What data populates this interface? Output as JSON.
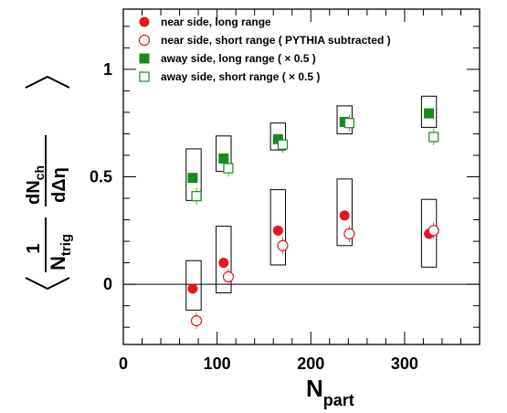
{
  "chart_data": {
    "type": "scatter",
    "xlabel": "N",
    "xlabel_sub": "part",
    "ylabel": {
      "one": "1",
      "trig_main": "N",
      "trig_sub": "trig",
      "dn_main": "dN",
      "dn_sub": "ch",
      "deta": "dΔη"
    },
    "xlim": [
      0,
      380
    ],
    "ylim": [
      -0.28,
      1.28
    ],
    "x_ticks": [
      0,
      100,
      200,
      300
    ],
    "x_tick_labels": [
      "0",
      "100",
      "200",
      "300"
    ],
    "y_ticks": [
      0,
      0.5,
      1
    ],
    "y_tick_labels": [
      "0",
      "0.5",
      "1"
    ],
    "legend_position": "top-left",
    "reference_line_y": 0,
    "series": [
      {
        "name": "near side, long range",
        "marker": "filled-circle",
        "color": "#e8141b",
        "points": [
          {
            "x": 74,
            "y": -0.02
          },
          {
            "x": 107,
            "y": 0.1
          },
          {
            "x": 165,
            "y": 0.25
          },
          {
            "x": 236,
            "y": 0.32
          },
          {
            "x": 326,
            "y": 0.235
          }
        ]
      },
      {
        "name": "near side, short range ( PYTHIA subtracted )",
        "marker": "open-circle",
        "color": "#e8141b",
        "points": [
          {
            "x": 78,
            "y": -0.17
          },
          {
            "x": 112,
            "y": 0.035
          },
          {
            "x": 170,
            "y": 0.18
          },
          {
            "x": 241,
            "y": 0.235
          },
          {
            "x": 331,
            "y": 0.25
          }
        ]
      },
      {
        "name": "away side, long range ( × 0.5 )",
        "marker": "filled-square",
        "color": "#198a1f",
        "points": [
          {
            "x": 74,
            "y": 0.495
          },
          {
            "x": 107,
            "y": 0.585
          },
          {
            "x": 165,
            "y": 0.675
          },
          {
            "x": 236,
            "y": 0.755
          },
          {
            "x": 326,
            "y": 0.795
          }
        ]
      },
      {
        "name": "away side, short range ( × 0.5 )",
        "marker": "open-square",
        "color": "#198a1f",
        "points": [
          {
            "x": 78,
            "y": 0.41
          },
          {
            "x": 112,
            "y": 0.54
          },
          {
            "x": 170,
            "y": 0.65
          },
          {
            "x": 241,
            "y": 0.75
          },
          {
            "x": 331,
            "y": 0.685
          }
        ]
      }
    ],
    "systematic_boxes": [
      {
        "x_center": 75,
        "x_width": 16,
        "y_low": -0.12,
        "y_high": 0.11
      },
      {
        "x_center": 107,
        "x_width": 16,
        "y_low": -0.04,
        "y_high": 0.27
      },
      {
        "x_center": 165,
        "x_width": 16,
        "y_low": 0.09,
        "y_high": 0.44
      },
      {
        "x_center": 236,
        "x_width": 16,
        "y_low": 0.18,
        "y_high": 0.49
      },
      {
        "x_center": 326,
        "x_width": 16,
        "y_low": 0.08,
        "y_high": 0.395
      },
      {
        "x_center": 75,
        "x_width": 16,
        "y_low": 0.39,
        "y_high": 0.63
      },
      {
        "x_center": 107,
        "x_width": 16,
        "y_low": 0.525,
        "y_high": 0.69
      },
      {
        "x_center": 165,
        "x_width": 16,
        "y_low": 0.625,
        "y_high": 0.75
      },
      {
        "x_center": 236,
        "x_width": 16,
        "y_low": 0.7,
        "y_high": 0.83
      },
      {
        "x_center": 326,
        "x_width": 16,
        "y_low": 0.73,
        "y_high": 0.875
      }
    ]
  }
}
